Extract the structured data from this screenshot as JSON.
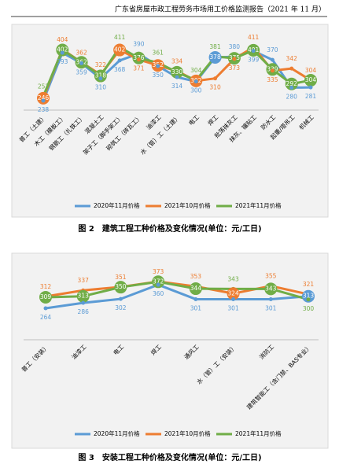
{
  "header": {
    "title": "广东省房屋市政工程劳务市场用工价格监测报告（2021 年 11 月）"
  },
  "chart_data": [
    {
      "type": "line",
      "categories": [
        "普工（土建）",
        "木工（模板工）",
        "钢筋工（扎铁工）",
        "混凝土工",
        "架子工（脚手架工）",
        "砌筑工（砖瓦工）",
        "油漆工",
        "水（管）工（土建）",
        "电工",
        "焊工",
        "批荡抹灰工",
        "抹灰、镶贴工",
        "防水工",
        "起重/塔吊工",
        "机械工"
      ],
      "series": [
        {
          "name": "2020年11月价格",
          "color": "#5b9bd5",
          "values": [
            238,
            393,
            359,
            310,
            368,
            390,
            350,
            314,
            300,
            378,
            380,
            399,
            370,
            280,
            281
          ]
        },
        {
          "name": "2021年10月价格",
          "color": "#ed7d31",
          "values": [
            246,
            404,
            362,
            322,
            402,
            371,
            352,
            334,
            302,
            310,
            373,
            411,
            335,
            342,
            304
          ]
        },
        {
          "name": "2021年11月价格",
          "color": "#70ad47",
          "values": [
            252,
            402,
            362,
            318,
            411,
            376,
            361,
            330,
            304,
            381,
            375,
            401,
            339,
            292,
            304
          ]
        }
      ]
    },
    {
      "type": "line",
      "categories": [
        "普工（安装）",
        "油漆工",
        "电工",
        "焊工",
        "通风工",
        "水（管）工（安装）",
        "消防工",
        "建筑智能工（含门禁、BAS专业）"
      ],
      "series": [
        {
          "name": "2020年11月价格",
          "color": "#5b9bd5",
          "values": [
            264,
            286,
            302,
            360,
            301,
            301,
            301,
            313
          ]
        },
        {
          "name": "2021年10月价格",
          "color": "#ed7d31",
          "values": [
            312,
            337,
            351,
            373,
            353,
            324,
            355,
            321
          ]
        },
        {
          "name": "2021年11月价格",
          "color": "#70ad47",
          "values": [
            309,
            313,
            350,
            372,
            344,
            343,
            343,
            300
          ]
        }
      ]
    }
  ],
  "captions": [
    "图 2　建筑工程工种价格及变化情况(单位：元/工日)",
    "图 3　安装工程工种价格及变化情况(单位：元/工日)"
  ]
}
